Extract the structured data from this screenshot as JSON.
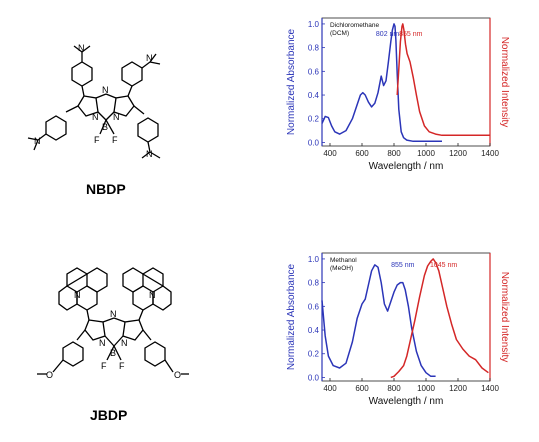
{
  "molecules": [
    {
      "name": "NBDP"
    },
    {
      "name": "JBDP"
    }
  ],
  "structure_labels": {
    "nme2": "N",
    "ring_n": "N",
    "bridge_n": "N",
    "boron": "B",
    "fluorine": "F",
    "oxygen": "O"
  },
  "chart_data": [
    {
      "type": "line",
      "solvent_label_line1": "Dichloromethane",
      "solvent_label_line2": "(DCM)",
      "xlabel": "Wavelength / nm",
      "ylabel_left": "Normalized Absorbance",
      "ylabel_right": "Normalized Intensity",
      "xlim": [
        350,
        1400
      ],
      "ylim": [
        -0.03,
        1.05
      ],
      "xticks": [
        400,
        600,
        800,
        1000,
        1200,
        1400
      ],
      "yticks": [
        0.0,
        0.2,
        0.4,
        0.6,
        0.8,
        1.0
      ],
      "annotations": [
        {
          "text": "802 nm",
          "x": 760,
          "y": 0.9,
          "color": "#2b35b8"
        },
        {
          "text": "855 nm",
          "x": 905,
          "y": 0.9,
          "color": "#d42727"
        }
      ],
      "series": [
        {
          "color": "#2b35b8",
          "axis": "left",
          "x": [
            350,
            370,
            390,
            410,
            430,
            460,
            500,
            540,
            570,
            590,
            605,
            620,
            640,
            660,
            680,
            700,
            720,
            735,
            750,
            765,
            780,
            790,
            800,
            806,
            812,
            820,
            830,
            845,
            860,
            880,
            920,
            1000,
            1100
          ],
          "values": [
            0.16,
            0.22,
            0.21,
            0.14,
            0.09,
            0.07,
            0.1,
            0.2,
            0.32,
            0.4,
            0.42,
            0.4,
            0.34,
            0.3,
            0.33,
            0.42,
            0.56,
            0.48,
            0.52,
            0.68,
            0.85,
            0.95,
            1.0,
            0.98,
            0.86,
            0.58,
            0.28,
            0.09,
            0.04,
            0.02,
            0.01,
            0.01,
            0.01
          ]
        },
        {
          "color": "#d42727",
          "axis": "right",
          "x": [
            820,
            830,
            840,
            850,
            855,
            862,
            872,
            882,
            900,
            920,
            940,
            960,
            990,
            1020,
            1060,
            1100,
            1150,
            1200,
            1300,
            1400
          ],
          "values": [
            0.4,
            0.62,
            0.85,
            0.98,
            1.0,
            0.95,
            0.83,
            0.75,
            0.68,
            0.55,
            0.4,
            0.26,
            0.14,
            0.09,
            0.07,
            0.06,
            0.06,
            0.06,
            0.06,
            0.06
          ]
        }
      ]
    },
    {
      "type": "line",
      "solvent_label_line1": "Methanol",
      "solvent_label_line2": "(MeOH)",
      "xlabel": "Wavelength / nm",
      "ylabel_left": "Normalized Absorbance",
      "ylabel_right": "Normalized Intensity",
      "xlim": [
        350,
        1400
      ],
      "ylim": [
        -0.03,
        1.05
      ],
      "xticks": [
        400,
        600,
        800,
        1000,
        1200,
        1400
      ],
      "yticks": [
        0.0,
        0.2,
        0.4,
        0.6,
        0.8,
        1.0
      ],
      "annotations": [
        {
          "text": "855 nm",
          "x": 855,
          "y": 0.93,
          "color": "#2b35b8"
        },
        {
          "text": "1045 nm",
          "x": 1110,
          "y": 0.93,
          "color": "#d42727"
        }
      ],
      "series": [
        {
          "color": "#2b35b8",
          "axis": "left",
          "x": [
            350,
            370,
            390,
            420,
            460,
            500,
            540,
            570,
            600,
            620,
            640,
            660,
            680,
            700,
            720,
            740,
            760,
            780,
            800,
            820,
            840,
            855,
            870,
            890,
            910,
            940,
            970,
            1000,
            1030,
            1060
          ],
          "values": [
            0.65,
            0.35,
            0.18,
            0.1,
            0.08,
            0.12,
            0.3,
            0.5,
            0.62,
            0.66,
            0.78,
            0.9,
            0.95,
            0.93,
            0.8,
            0.62,
            0.56,
            0.64,
            0.72,
            0.78,
            0.8,
            0.8,
            0.74,
            0.6,
            0.42,
            0.22,
            0.1,
            0.04,
            0.01,
            0.01
          ]
        },
        {
          "color": "#d42727",
          "axis": "right",
          "x": [
            780,
            800,
            830,
            860,
            880,
            900,
            930,
            960,
            990,
            1010,
            1030,
            1045,
            1060,
            1080,
            1100,
            1130,
            1160,
            1190,
            1230,
            1270,
            1310,
            1350,
            1390
          ],
          "values": [
            0.0,
            0.01,
            0.05,
            0.1,
            0.18,
            0.3,
            0.48,
            0.68,
            0.86,
            0.94,
            0.98,
            1.0,
            0.97,
            0.9,
            0.78,
            0.6,
            0.45,
            0.32,
            0.24,
            0.18,
            0.15,
            0.08,
            0.04
          ]
        }
      ]
    }
  ]
}
